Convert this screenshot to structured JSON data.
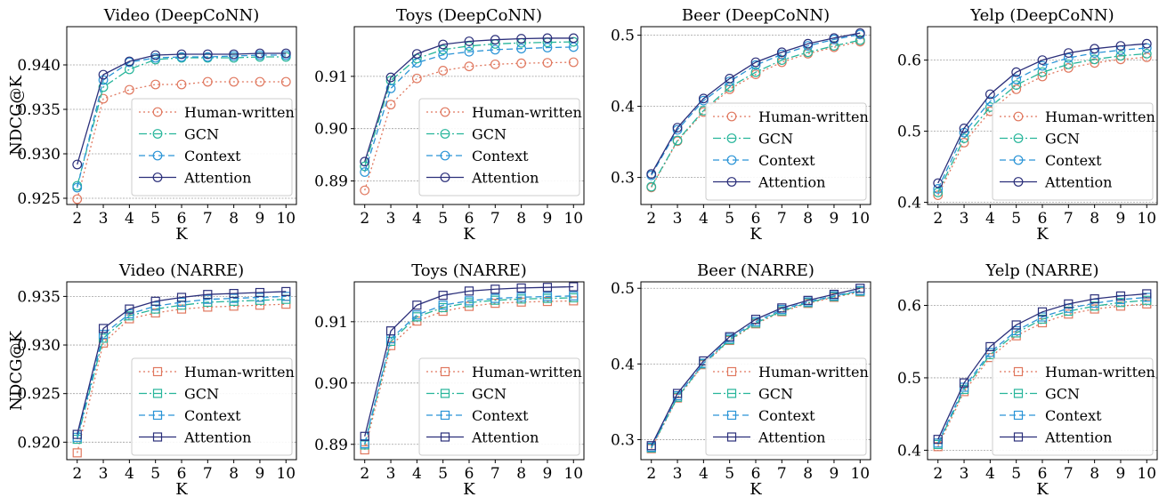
{
  "figure": {
    "x_label": "K",
    "y_label": "NDCG@K",
    "legend_labels": [
      "Human-written",
      "GCN",
      "Context",
      "Attention"
    ]
  },
  "colors": {
    "Human-written": "#e0785f",
    "GCN": "#26b59a",
    "Context": "#2a94d6",
    "Attention": "#2b2f7a"
  },
  "chart_data": [
    {
      "type": "line",
      "title": "Video (DeepCoNN)",
      "x": [
        2,
        3,
        4,
        5,
        6,
        7,
        8,
        9,
        10
      ],
      "xlabel": "K",
      "ylabel": "NDCG@K",
      "ylim": [
        0.9243,
        0.9443
      ],
      "yticks": [
        0.925,
        0.93,
        0.935,
        0.94
      ],
      "ytick_labels": [
        "0.925",
        "0.930",
        "0.935",
        "0.940"
      ],
      "marker": "circle",
      "grid": "horizontal",
      "legend_position": "center-right",
      "series": [
        {
          "name": "Human-written",
          "values": [
            0.9249,
            0.9362,
            0.9372,
            0.9378,
            0.9378,
            0.9381,
            0.9381,
            0.9381,
            0.9381
          ]
        },
        {
          "name": "GCN",
          "values": [
            0.9264,
            0.9375,
            0.9395,
            0.9406,
            0.9408,
            0.9408,
            0.9408,
            0.9409,
            0.9409
          ]
        },
        {
          "name": "Context",
          "values": [
            0.9262,
            0.9383,
            0.9403,
            0.9408,
            0.9409,
            0.9409,
            0.941,
            0.9411,
            0.9411
          ]
        },
        {
          "name": "Attention",
          "values": [
            0.9288,
            0.9389,
            0.9404,
            0.9411,
            0.9412,
            0.9412,
            0.9412,
            0.9413,
            0.9413
          ]
        }
      ]
    },
    {
      "type": "line",
      "title": "Toys (DeepCoNN)",
      "x": [
        2,
        3,
        4,
        5,
        6,
        7,
        8,
        9,
        10
      ],
      "xlabel": "K",
      "ylabel": "",
      "ylim": [
        0.8855,
        0.9195
      ],
      "yticks": [
        0.89,
        0.9,
        0.91
      ],
      "ytick_labels": [
        "0.89",
        "0.90",
        "0.91"
      ],
      "marker": "circle",
      "grid": "horizontal",
      "legend_position": "center-right",
      "series": [
        {
          "name": "Human-written",
          "values": [
            0.8882,
            0.9046,
            0.9096,
            0.9111,
            0.9119,
            0.9123,
            0.9125,
            0.9126,
            0.9127
          ]
        },
        {
          "name": "GCN",
          "values": [
            0.8928,
            0.9092,
            0.9134,
            0.9151,
            0.9158,
            0.9162,
            0.9164,
            0.9165,
            0.9166
          ]
        },
        {
          "name": "Context",
          "values": [
            0.8917,
            0.9077,
            0.9126,
            0.9141,
            0.9147,
            0.9151,
            0.9153,
            0.9155,
            0.9156
          ]
        },
        {
          "name": "Attention",
          "values": [
            0.8937,
            0.9098,
            0.9143,
            0.9161,
            0.9167,
            0.917,
            0.9172,
            0.9173,
            0.9173
          ]
        }
      ]
    },
    {
      "type": "line",
      "title": "Beer (DeepCoNN)",
      "x": [
        2,
        3,
        4,
        5,
        6,
        7,
        8,
        9,
        10
      ],
      "xlabel": "K",
      "ylabel": "",
      "ylim": [
        0.262,
        0.512
      ],
      "yticks": [
        0.3,
        0.4,
        0.5
      ],
      "ytick_labels": [
        "0.3",
        "0.4",
        "0.5"
      ],
      "marker": "circle",
      "grid": "horizontal",
      "legend_position": "bottom-right",
      "series": [
        {
          "name": "Human-written",
          "values": [
            0.286,
            0.351,
            0.392,
            0.424,
            0.445,
            0.462,
            0.474,
            0.483,
            0.491
          ]
        },
        {
          "name": "GCN",
          "values": [
            0.287,
            0.352,
            0.394,
            0.427,
            0.448,
            0.465,
            0.476,
            0.485,
            0.493
          ]
        },
        {
          "name": "Context",
          "values": [
            0.303,
            0.367,
            0.408,
            0.435,
            0.458,
            0.473,
            0.485,
            0.494,
            0.501
          ]
        },
        {
          "name": "Attention",
          "values": [
            0.305,
            0.37,
            0.411,
            0.439,
            0.462,
            0.476,
            0.488,
            0.496,
            0.503
          ]
        }
      ]
    },
    {
      "type": "line",
      "title": "Yelp (DeepCoNN)",
      "x": [
        2,
        3,
        4,
        5,
        6,
        7,
        8,
        9,
        10
      ],
      "xlabel": "K",
      "ylabel": "",
      "ylim": [
        0.397,
        0.647
      ],
      "yticks": [
        0.4,
        0.5,
        0.6
      ],
      "ytick_labels": [
        "0.4",
        "0.5",
        "0.6"
      ],
      "marker": "circle",
      "grid": "horizontal",
      "legend_position": "bottom-right",
      "series": [
        {
          "name": "Human-written",
          "values": [
            0.41,
            0.484,
            0.528,
            0.559,
            0.577,
            0.589,
            0.596,
            0.601,
            0.604
          ]
        },
        {
          "name": "GCN",
          "values": [
            0.414,
            0.49,
            0.534,
            0.565,
            0.583,
            0.594,
            0.601,
            0.606,
            0.609
          ]
        },
        {
          "name": "Context",
          "values": [
            0.419,
            0.498,
            0.542,
            0.573,
            0.592,
            0.603,
            0.61,
            0.614,
            0.617
          ]
        },
        {
          "name": "Attention",
          "values": [
            0.427,
            0.504,
            0.552,
            0.583,
            0.6,
            0.61,
            0.616,
            0.62,
            0.623
          ]
        }
      ]
    },
    {
      "type": "line",
      "title": "Video (NARRE)",
      "x": [
        2,
        3,
        4,
        5,
        6,
        7,
        8,
        9,
        10
      ],
      "xlabel": "K",
      "ylabel": "NDCG@K",
      "ylim": [
        0.9182,
        0.9365
      ],
      "yticks": [
        0.92,
        0.925,
        0.93,
        0.935
      ],
      "ytick_labels": [
        "0.920",
        "0.925",
        "0.930",
        "0.935"
      ],
      "marker": "square",
      "grid": "horizontal",
      "legend_position": "bottom-right",
      "series": [
        {
          "name": "Human-written",
          "values": [
            0.9189,
            0.9302,
            0.9327,
            0.9333,
            0.9337,
            0.9339,
            0.934,
            0.9341,
            0.9342
          ]
        },
        {
          "name": "GCN",
          "values": [
            0.9203,
            0.9307,
            0.933,
            0.9337,
            0.9341,
            0.9344,
            0.9345,
            0.9346,
            0.9347
          ]
        },
        {
          "name": "Context",
          "values": [
            0.9205,
            0.9311,
            0.9332,
            0.934,
            0.9344,
            0.9347,
            0.9348,
            0.9349,
            0.935
          ]
        },
        {
          "name": "Attention",
          "values": [
            0.9208,
            0.9317,
            0.9337,
            0.9345,
            0.9349,
            0.9352,
            0.9353,
            0.9354,
            0.9355
          ]
        }
      ]
    },
    {
      "type": "line",
      "title": "Toys (NARRE)",
      "x": [
        2,
        3,
        4,
        5,
        6,
        7,
        8,
        9,
        10
      ],
      "xlabel": "K",
      "ylabel": "",
      "ylim": [
        0.8875,
        0.9165
      ],
      "yticks": [
        0.89,
        0.9,
        0.91
      ],
      "ytick_labels": [
        "0.89",
        "0.90",
        "0.91"
      ],
      "marker": "square",
      "grid": "horizontal",
      "legend_position": "bottom-right",
      "series": [
        {
          "name": "Human-written",
          "values": [
            0.8891,
            0.9061,
            0.9101,
            0.9117,
            0.9125,
            0.913,
            0.9132,
            0.9133,
            0.9134
          ]
        },
        {
          "name": "GCN",
          "values": [
            0.8899,
            0.9068,
            0.9108,
            0.9123,
            0.9131,
            0.9135,
            0.9137,
            0.9138,
            0.9139
          ]
        },
        {
          "name": "Context",
          "values": [
            0.8901,
            0.9072,
            0.9111,
            0.9127,
            0.9134,
            0.9138,
            0.914,
            0.9141,
            0.9142
          ]
        },
        {
          "name": "Attention",
          "values": [
            0.8913,
            0.9085,
            0.9127,
            0.9143,
            0.915,
            0.9153,
            0.9155,
            0.9156,
            0.9157
          ]
        }
      ]
    },
    {
      "type": "line",
      "title": "Beer (NARRE)",
      "x": [
        2,
        3,
        4,
        5,
        6,
        7,
        8,
        9,
        10
      ],
      "xlabel": "K",
      "ylabel": "",
      "ylim": [
        0.2735,
        0.5085
      ],
      "yticks": [
        0.3,
        0.4,
        0.5
      ],
      "ytick_labels": [
        "0.3",
        "0.4",
        "0.5"
      ],
      "marker": "square",
      "grid": "horizontal",
      "legend_position": "bottom-right",
      "series": [
        {
          "name": "Human-written",
          "values": [
            0.288,
            0.355,
            0.399,
            0.431,
            0.453,
            0.469,
            0.48,
            0.488,
            0.495
          ]
        },
        {
          "name": "GCN",
          "values": [
            0.289,
            0.356,
            0.4,
            0.432,
            0.454,
            0.47,
            0.481,
            0.489,
            0.496
          ]
        },
        {
          "name": "Context",
          "values": [
            0.29,
            0.358,
            0.401,
            0.434,
            0.456,
            0.472,
            0.482,
            0.49,
            0.497
          ]
        },
        {
          "name": "Attention",
          "values": [
            0.292,
            0.361,
            0.404,
            0.436,
            0.459,
            0.474,
            0.484,
            0.492,
            0.5
          ]
        }
      ]
    },
    {
      "type": "line",
      "title": "Yelp (NARRE)",
      "x": [
        2,
        3,
        4,
        5,
        6,
        7,
        8,
        9,
        10
      ],
      "xlabel": "K",
      "ylabel": "",
      "ylim": [
        0.387,
        0.6325
      ],
      "yticks": [
        0.4,
        0.5,
        0.6
      ],
      "ytick_labels": [
        "0.4",
        "0.5",
        "0.6"
      ],
      "marker": "square",
      "grid": "horizontal",
      "legend_position": "bottom-right",
      "series": [
        {
          "name": "Human-written",
          "values": [
            0.405,
            0.481,
            0.528,
            0.558,
            0.576,
            0.588,
            0.595,
            0.599,
            0.602
          ]
        },
        {
          "name": "GCN",
          "values": [
            0.408,
            0.484,
            0.532,
            0.562,
            0.581,
            0.592,
            0.599,
            0.604,
            0.607
          ]
        },
        {
          "name": "Context",
          "values": [
            0.41,
            0.487,
            0.535,
            0.565,
            0.584,
            0.596,
            0.603,
            0.608,
            0.611
          ]
        },
        {
          "name": "Attention",
          "values": [
            0.415,
            0.493,
            0.543,
            0.573,
            0.591,
            0.602,
            0.609,
            0.613,
            0.616
          ]
        }
      ]
    }
  ]
}
